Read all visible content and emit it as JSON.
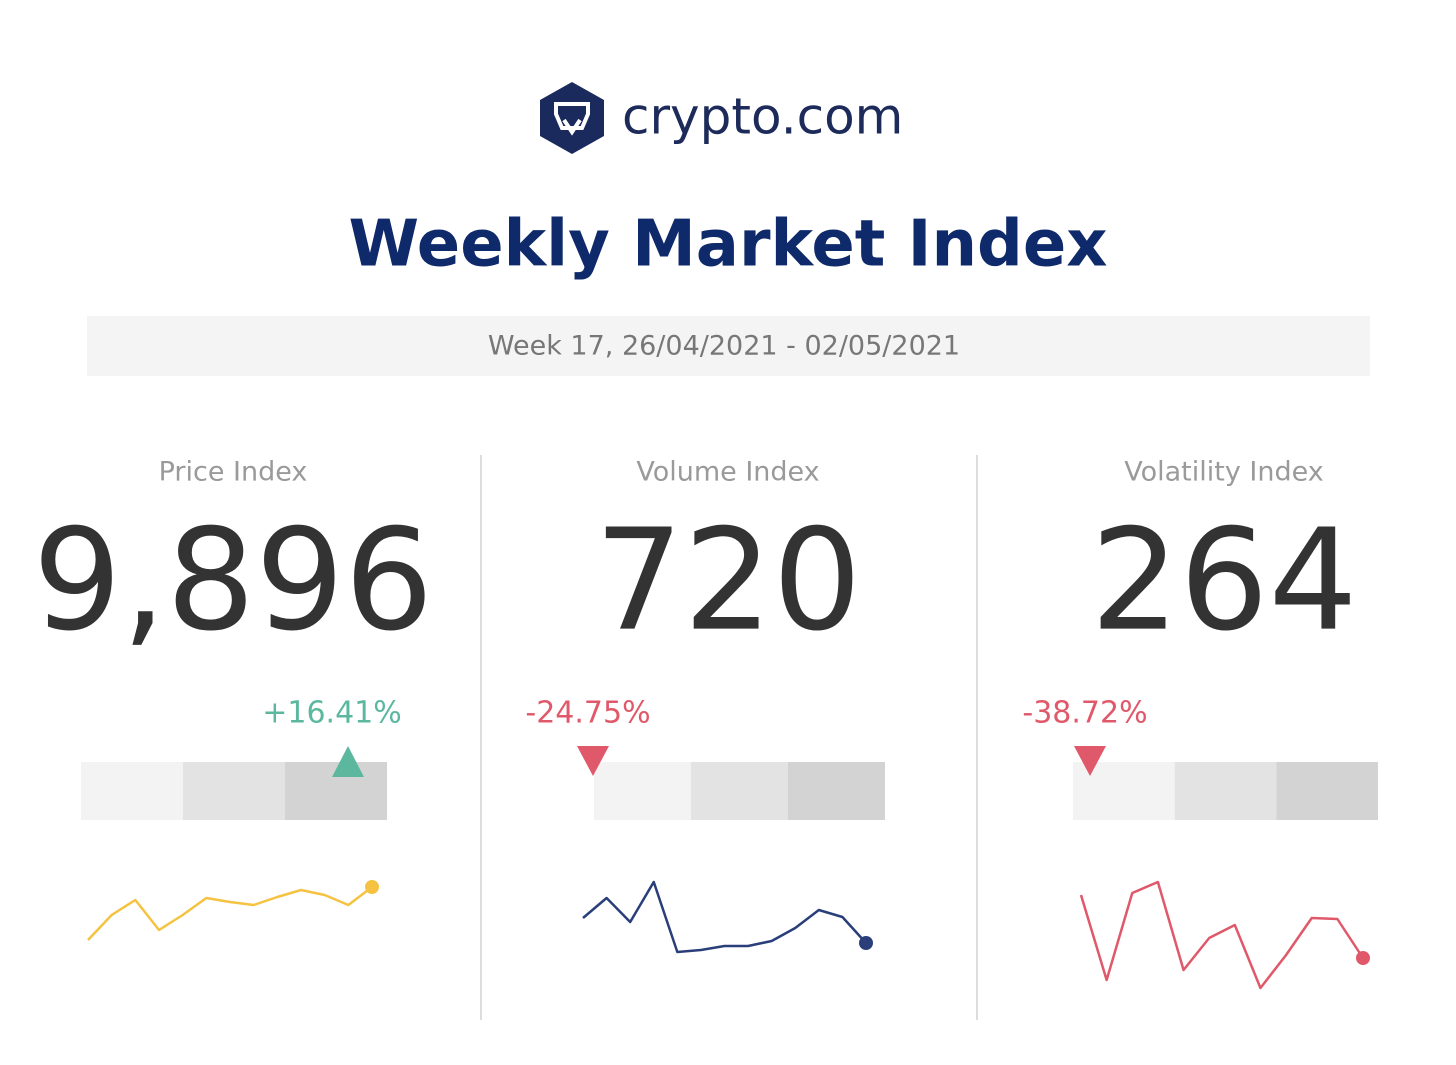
{
  "logo_text": "crypto.com",
  "title": "Weekly Market Index",
  "subtitle": "Week 17, 26/04/2021 - 02/05/2021",
  "sparkline_ylim": [
    0,
    140
  ],
  "cards": [
    {
      "label": "Price Index",
      "value": "9,896",
      "change": "+16.41%",
      "direction": "up",
      "change_color": "#5bb89f",
      "line_color": "#f5c242",
      "sparkline": [
        60,
        85,
        100,
        70,
        85,
        102,
        98,
        95,
        103,
        110,
        105,
        95,
        113
      ]
    },
    {
      "label": "Volume Index",
      "value": "720",
      "change": "-24.75%",
      "direction": "down",
      "change_color": "#e0596a",
      "line_color": "#2a3f7a",
      "sparkline": [
        82,
        102,
        78,
        118,
        48,
        50,
        54,
        54,
        59,
        72,
        90,
        83,
        57
      ]
    },
    {
      "label": "Volatility Index",
      "value": "264",
      "change": "-38.72%",
      "direction": "down",
      "change_color": "#e0596a",
      "line_color": "#e0596a",
      "sparkline": [
        105,
        20,
        107,
        118,
        30,
        62,
        75,
        12,
        45,
        82,
        81,
        42
      ]
    }
  ]
}
